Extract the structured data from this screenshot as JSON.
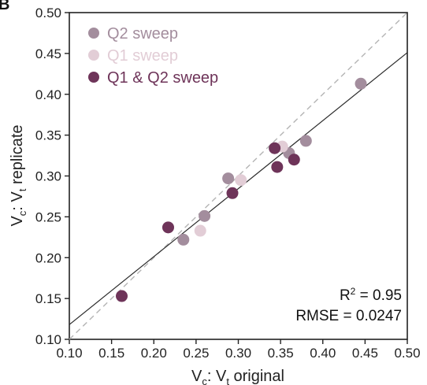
{
  "panel_label": "B",
  "colors": {
    "q2": "#a38d9d",
    "q1": "#e2cdd6",
    "both": "#6e3459",
    "identity": "#b4b4b4",
    "fit": "#2a2a2a"
  },
  "legend": [
    {
      "label": "Q2 sweep",
      "series_key": "q2"
    },
    {
      "label": "Q1 sweep",
      "series_key": "q1"
    },
    {
      "label": "Q1 & Q2 sweep",
      "series_key": "both"
    }
  ],
  "axes": {
    "x": {
      "main": "V",
      "sub1": "c",
      "mid": ": V",
      "sub2": "t",
      "tail": " original"
    },
    "y": {
      "main": "V",
      "sub1": "c",
      "mid": ": V",
      "sub2": "t",
      "tail": " replicate"
    }
  },
  "stats": {
    "r2_prefix": "R",
    "r2_sup": "2",
    "r2_value": " = 0.95",
    "rmse": "RMSE = 0.0247"
  },
  "chart_data": {
    "type": "scatter",
    "xlabel": "Vc: Vt original",
    "ylabel": "Vc: Vt replicate",
    "xlim": [
      0.1,
      0.5
    ],
    "ylim": [
      0.1,
      0.5
    ],
    "xticks": [
      "0.10",
      "0.15",
      "0.20",
      "0.25",
      "0.30",
      "0.35",
      "0.40",
      "0.45",
      "0.50"
    ],
    "yticks": [
      "0.10",
      "0.15",
      "0.20",
      "0.25",
      "0.30",
      "0.35",
      "0.40",
      "0.45",
      "0.50"
    ],
    "grid": false,
    "legend_position": "top-left",
    "identity_line": {
      "style": "dashed",
      "points": [
        [
          0.1,
          0.1
        ],
        [
          0.5,
          0.5
        ]
      ]
    },
    "fit_line": {
      "style": "solid",
      "points": [
        [
          0.1,
          0.118
        ],
        [
          0.5,
          0.451
        ]
      ]
    },
    "series": [
      {
        "name": "Q2 sweep",
        "key": "q2",
        "points": [
          [
            0.235,
            0.222
          ],
          [
            0.26,
            0.251
          ],
          [
            0.288,
            0.297
          ],
          [
            0.36,
            0.328
          ],
          [
            0.38,
            0.343
          ],
          [
            0.445,
            0.413
          ]
        ]
      },
      {
        "name": "Q1 sweep",
        "key": "q1",
        "points": [
          [
            0.255,
            0.233
          ],
          [
            0.303,
            0.295
          ],
          [
            0.352,
            0.336
          ]
        ]
      },
      {
        "name": "Q1 & Q2 sweep",
        "key": "both",
        "points": [
          [
            0.162,
            0.153
          ],
          [
            0.217,
            0.237
          ],
          [
            0.293,
            0.279
          ],
          [
            0.343,
            0.334
          ],
          [
            0.346,
            0.311
          ],
          [
            0.366,
            0.32
          ]
        ]
      }
    ]
  }
}
